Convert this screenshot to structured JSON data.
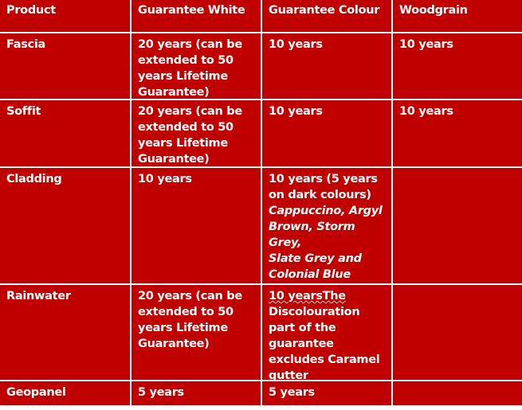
{
  "header": [
    "Product",
    "Guarantee White",
    "Guarantee Colour",
    "Woodgrain"
  ],
  "rows": [
    {
      "product": "Fascia",
      "white": "20 years (can be extended to 50 years Lifetime Guarantee)",
      "colour": "10 years",
      "woodgrain": "10 years"
    },
    {
      "product": "Soffit",
      "white": "20 years (can be extended to 50 years Lifetime Guarantee)",
      "colour": "10 years",
      "woodgrain": "10 years"
    },
    {
      "product": "Cladding",
      "white": "10 years",
      "colour": "10 years (5 years on dark colours)",
      "colour_italic_1": "Cappuccino, Argyl Brown, Storm Grey,",
      "colour_italic_2": "Slate Grey and Colonial Blue",
      "woodgrain": ""
    },
    {
      "product": "Rainwater",
      "white": "20 years (can be extended to 50 years Lifetime Guarantee)",
      "colour_underlined": "10 yearsThe",
      "colour": "Discolouration part of the guarantee excludes Caramel gutter",
      "woodgrain": ""
    },
    {
      "product": "Geopanel",
      "white": "5 years",
      "colour": "5 years",
      "woodgrain": ""
    }
  ],
  "colors": {
    "cell_background": "#c00000",
    "text": "#ffffff",
    "border": "#ffffff"
  }
}
